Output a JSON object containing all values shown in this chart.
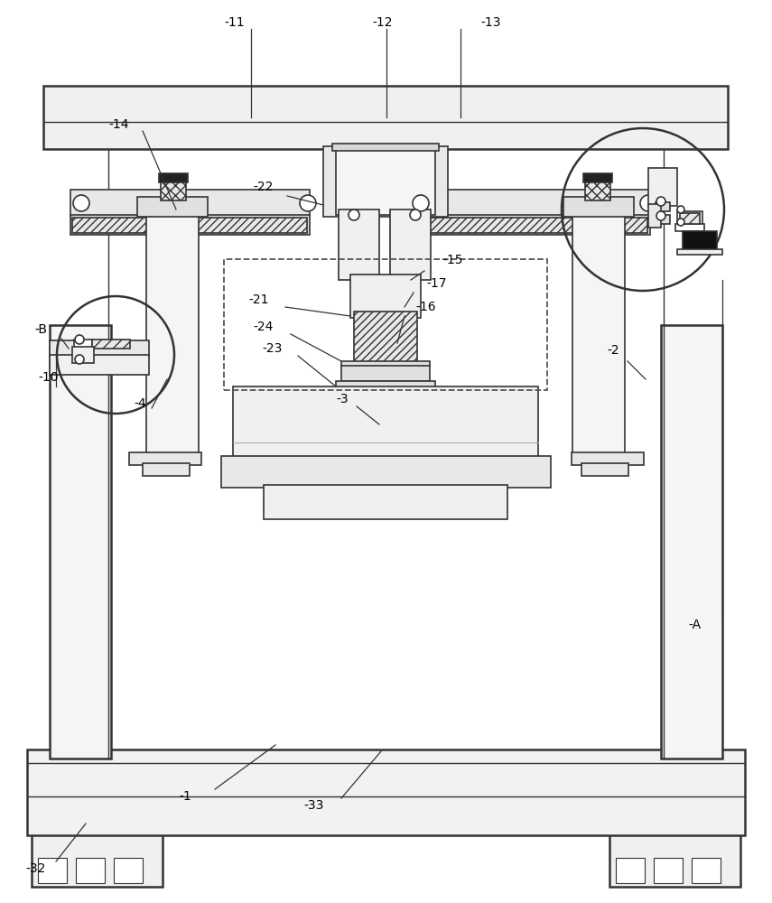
{
  "bg_color": "#ffffff",
  "line_color": "#333333",
  "fig_width": 8.55,
  "fig_height": 10.0
}
